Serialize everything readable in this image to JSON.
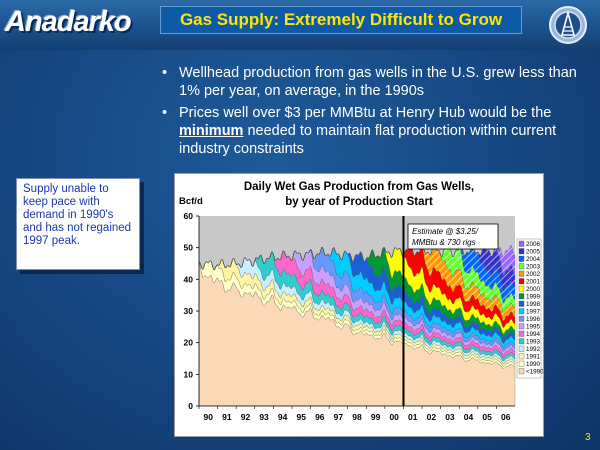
{
  "slide": {
    "brand": "Anadarko",
    "title": "Gas Supply:  Extremely Difficult to Grow",
    "page_number": "3"
  },
  "bullets": [
    {
      "text": "Wellhead production from gas wells in the U.S. grew less than 1% per year, on average, in the 1990s"
    },
    {
      "before": "Prices well over $3 per MMBtu at Henry Hub would be the ",
      "em": "minimum",
      "after": " needed to maintain flat production within current industry constraints"
    }
  ],
  "callout": {
    "text": "Supply unable to keep pace with demand in 1990's and has not regained 1997 peak."
  },
  "chart_data": {
    "type": "area",
    "title_line1": "Daily Wet Gas Production from Gas Wells,",
    "title_line2": "by year of Production Start",
    "ylabel": "Bcf/d",
    "ylim": [
      0,
      60
    ],
    "yticks": [
      "0",
      "10",
      "20",
      "30",
      "40",
      "50",
      "60"
    ],
    "xlim": [
      1990,
      2007
    ],
    "xticks": [
      "90",
      "91",
      "92",
      "93",
      "94",
      "95",
      "96",
      "97",
      "98",
      "99",
      "00",
      "01",
      "02",
      "03",
      "04",
      "05",
      "06"
    ],
    "estimate_label_line1": "Estimate @ $3.25/",
    "estimate_label_line2": "MMBtu & 730 rigs",
    "estimate_start": 2001,
    "total_profile": [
      [
        1990,
        45
      ],
      [
        1991,
        44.5
      ],
      [
        1992,
        45
      ],
      [
        1993,
        46
      ],
      [
        1994,
        47
      ],
      [
        1995,
        47.5
      ],
      [
        1996,
        48
      ],
      [
        1997,
        48.5
      ],
      [
        1998,
        47.5
      ],
      [
        1999,
        47
      ],
      [
        2000,
        48.5
      ],
      [
        2001,
        49
      ],
      [
        2002,
        49
      ],
      [
        2003,
        49
      ],
      [
        2004,
        49
      ],
      [
        2005,
        49
      ],
      [
        2006,
        49
      ],
      [
        2007,
        49
      ]
    ],
    "series": [
      {
        "name": "<1990",
        "start": 1990,
        "color": "#fcd9b6",
        "base": 40
      },
      {
        "name": "1990",
        "start": 1990,
        "color": "#ffffc8",
        "peak": 4
      },
      {
        "name": "1991",
        "start": 1991,
        "color": "#fff4a0",
        "peak": 4
      },
      {
        "name": "1992",
        "start": 1992,
        "color": "#c8f0ff",
        "peak": 4
      },
      {
        "name": "1993",
        "start": 1993,
        "color": "#33cccc",
        "peak": 5
      },
      {
        "name": "1994",
        "start": 1994,
        "color": "#ff66cc",
        "peak": 5
      },
      {
        "name": "1995",
        "start": 1995,
        "color": "#c8a0ff",
        "peak": 5
      },
      {
        "name": "1996",
        "start": 1996,
        "color": "#6699ff",
        "peak": 5
      },
      {
        "name": "1997",
        "start": 1997,
        "color": "#00ccff",
        "peak": 6
      },
      {
        "name": "1998",
        "start": 1998,
        "color": "#1a5fd6",
        "peak": 6
      },
      {
        "name": "1999",
        "start": 1999,
        "color": "#009933",
        "peak": 6
      },
      {
        "name": "2000",
        "start": 2000,
        "color": "#ffff00",
        "peak": 7
      },
      {
        "name": "2001",
        "start": 2001,
        "color": "#ff0000",
        "peak": 7
      },
      {
        "name": "2002",
        "start": 2002,
        "color": "#ff9900",
        "peak": 7
      },
      {
        "name": "2003",
        "start": 2003,
        "color": "#66ff33",
        "peak": 7
      },
      {
        "name": "2004",
        "start": 2004,
        "color": "#0066ff",
        "peak": 7
      },
      {
        "name": "2005",
        "start": 2005,
        "color": "#3333cc",
        "peak": 7
      },
      {
        "name": "2006",
        "start": 2006,
        "color": "#9966ff",
        "peak": 7
      }
    ]
  }
}
